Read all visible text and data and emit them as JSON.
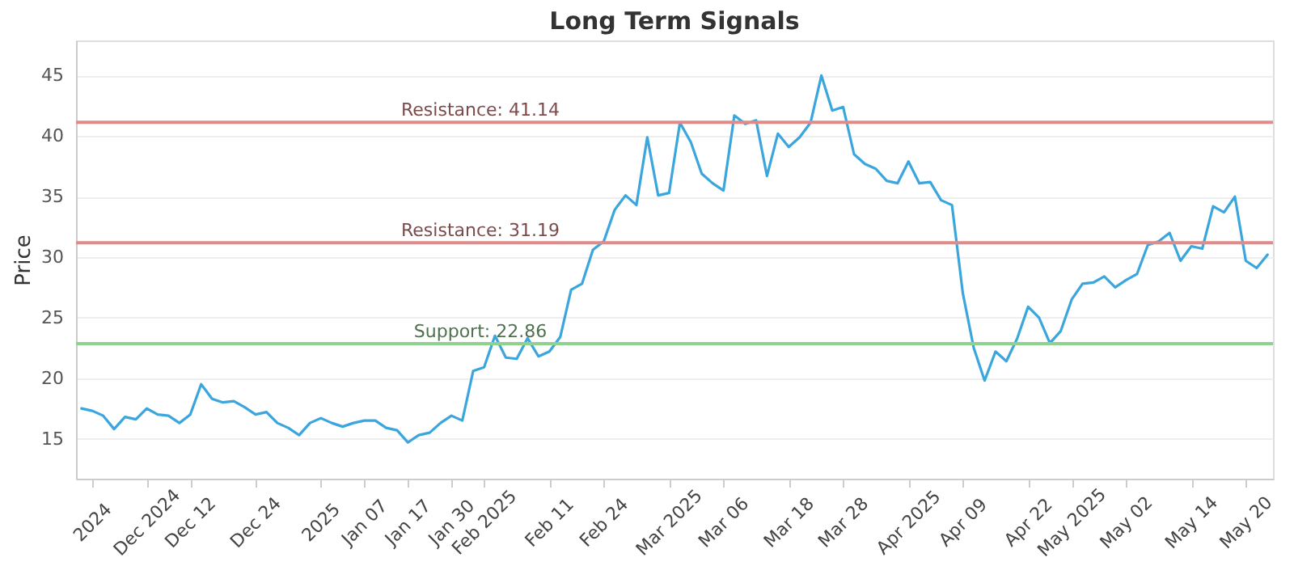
{
  "chart_data": {
    "type": "line",
    "title": "Long Term Signals",
    "ylabel": "Price",
    "categories": [
      null,
      "2024",
      null,
      null,
      null,
      null,
      "Dec 2024",
      null,
      null,
      null,
      "Dec 12",
      null,
      null,
      null,
      null,
      null,
      "Dec 24",
      null,
      null,
      null,
      null,
      null,
      "2025",
      null,
      null,
      null,
      "Jan 07",
      null,
      null,
      null,
      "Jan 17",
      null,
      null,
      null,
      "Jan 30",
      null,
      null,
      "Feb 2025",
      null,
      null,
      null,
      null,
      null,
      "Feb 11",
      null,
      null,
      null,
      null,
      "Feb 24",
      null,
      null,
      null,
      null,
      null,
      "Mar 2025",
      null,
      null,
      null,
      null,
      "Mar 06",
      null,
      null,
      null,
      null,
      null,
      "Mar 18",
      null,
      null,
      null,
      null,
      "Mar 28",
      null,
      null,
      null,
      null,
      null,
      "Apr 2025",
      null,
      null,
      null,
      null,
      "Apr 09",
      null,
      null,
      null,
      null,
      null,
      "Apr 22",
      null,
      null,
      null,
      "May 2025",
      null,
      null,
      null,
      null,
      "May 02",
      null,
      null,
      null,
      null,
      null,
      "May 14",
      null,
      null,
      null,
      null,
      "May 20",
      null,
      null
    ],
    "series": [
      {
        "color": "#3aa6dd",
        "values": [
          17.5,
          17.3,
          16.9,
          15.8,
          16.8,
          16.6,
          17.5,
          17.0,
          16.9,
          16.3,
          17.0,
          19.5,
          18.3,
          18.0,
          18.1,
          17.6,
          17.0,
          17.2,
          16.3,
          15.9,
          15.3,
          16.3,
          16.7,
          16.3,
          16.0,
          16.3,
          16.5,
          16.5,
          15.9,
          15.7,
          14.7,
          15.3,
          15.5,
          16.3,
          16.9,
          16.5,
          20.6,
          20.9,
          23.5,
          21.7,
          21.6,
          23.3,
          21.8,
          22.2,
          23.4,
          27.3,
          27.8,
          30.6,
          31.3,
          33.9,
          35.1,
          34.3,
          39.9,
          35.1,
          35.3,
          41.1,
          39.5,
          36.9,
          36.1,
          35.5,
          41.7,
          41.0,
          41.3,
          36.7,
          40.2,
          39.1,
          39.9,
          41.1,
          45.0,
          42.1,
          42.4,
          38.5,
          37.7,
          37.3,
          36.3,
          36.1,
          37.9,
          36.1,
          36.2,
          34.7,
          34.3,
          27.0,
          22.5,
          19.8,
          22.2,
          21.4,
          23.3,
          25.9,
          25.0,
          22.9,
          23.9,
          26.5,
          27.8,
          27.9,
          28.4,
          27.5,
          28.1,
          28.6,
          31.0,
          31.3,
          32.0,
          29.7,
          30.9,
          30.7,
          34.2,
          33.7,
          35.0,
          29.7,
          29.1,
          30.2
        ]
      }
    ],
    "ylim": [
      11.7,
      47.9
    ],
    "yticks": [
      15,
      20,
      25,
      30,
      35,
      40,
      45
    ],
    "grid": "y",
    "ref_lines": [
      {
        "axis": "y",
        "value": 41.14,
        "label": "Resistance: 41.14",
        "color": "#e08a8a"
      },
      {
        "axis": "y",
        "value": 31.19,
        "label": "Resistance: 31.19",
        "color": "#e08a8a"
      },
      {
        "axis": "y",
        "value": 22.86,
        "label": "Support: 22.86",
        "color": "#8fd18f"
      }
    ]
  }
}
